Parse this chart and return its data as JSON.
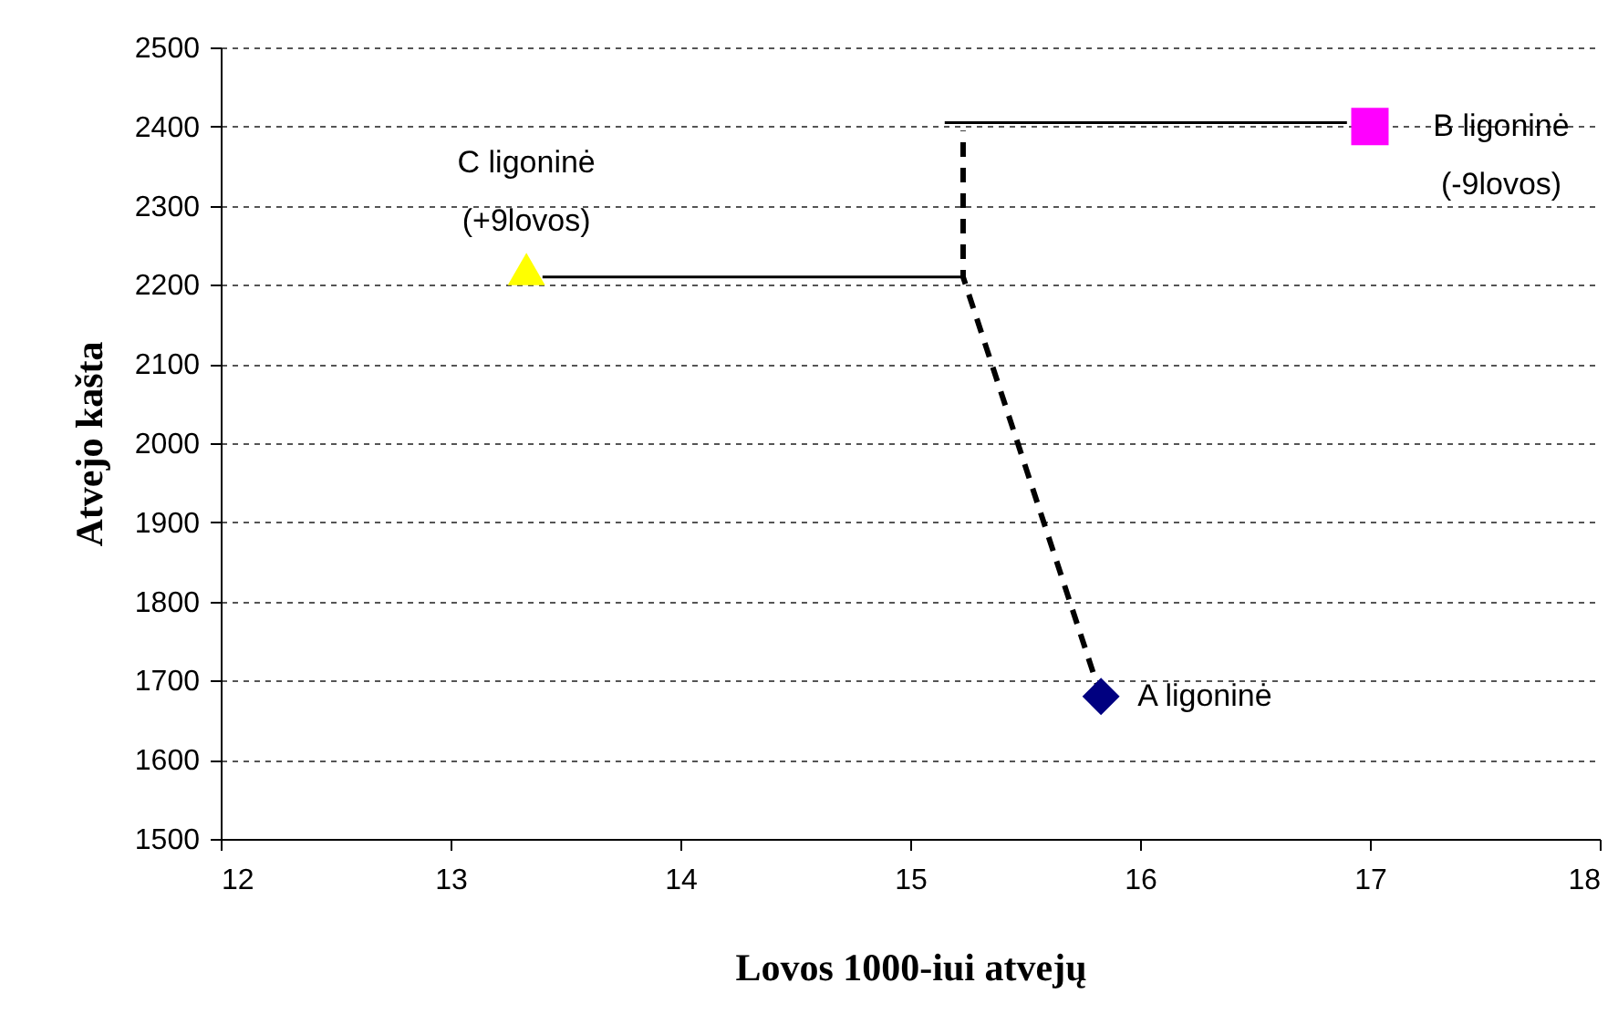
{
  "chart_data": {
    "type": "scatter",
    "xlabel": "Lovos 1000-iui atvejų",
    "ylabel": "Atvejo kašta",
    "xlim": [
      12,
      18
    ],
    "xticks": [
      12,
      13,
      14,
      15,
      16,
      17,
      18
    ],
    "ylim": [
      1500,
      2500
    ],
    "yticks": [
      1500,
      1600,
      1700,
      1800,
      1900,
      2000,
      2100,
      2200,
      2300,
      2400,
      2500
    ],
    "grid": "y",
    "series": [
      {
        "type": "line",
        "color": "#000000",
        "line_style": "dashed",
        "marker": "none",
        "x": [
          15.83,
          15.23,
          15.23
        ],
        "values": [
          1680,
          2210,
          2395
        ]
      },
      {
        "type": "line",
        "color": "#000000",
        "line_style": "solid",
        "marker": "none",
        "x": [
          13.4,
          15.23
        ],
        "values": [
          2210,
          2210
        ]
      },
      {
        "type": "line",
        "color": "#000000",
        "line_style": "solid",
        "marker": "none",
        "x": [
          16.9,
          15.15
        ],
        "values": [
          2405,
          2405
        ]
      },
      {
        "color": "#ffff00",
        "marker": "triangle",
        "x": [
          13.33
        ],
        "values": [
          2220
        ]
      },
      {
        "color": "#ff00ff",
        "marker": "square",
        "x": [
          17.0
        ],
        "values": [
          2400
        ]
      },
      {
        "color": "#000080",
        "marker": "diamond",
        "x": [
          15.83
        ],
        "values": [
          1680
        ]
      }
    ],
    "annotations": [
      "C ligoninė\n(+9lovos)",
      "B ligoninė\n(-9lovos)",
      "A ligoninė"
    ]
  }
}
